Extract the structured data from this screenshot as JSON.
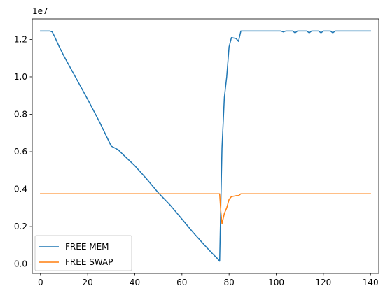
{
  "chart_data": {
    "type": "line",
    "title": "",
    "xlabel": "",
    "ylabel": "",
    "y_offset_label": "1e7",
    "y_scale": 10000000,
    "xlim": [
      -3.5,
      143.5
    ],
    "ylim": [
      -0.05,
      1.31
    ],
    "xticks": [
      0,
      20,
      40,
      60,
      80,
      100,
      120,
      140
    ],
    "xtick_labels": [
      "0",
      "20",
      "40",
      "60",
      "80",
      "100",
      "120",
      "140"
    ],
    "yticks": [
      0.0,
      0.2,
      0.4,
      0.6,
      0.8,
      1.0,
      1.2
    ],
    "ytick_labels": [
      "0.0",
      "0.2",
      "0.4",
      "0.6",
      "0.8",
      "1.0",
      "1.2"
    ],
    "grid": false,
    "legend_position": "lower-left",
    "series": [
      {
        "name": "FREE MEM",
        "color": "#1f77b4",
        "points": [
          [
            0,
            1.245
          ],
          [
            4,
            1.245
          ],
          [
            5,
            1.24
          ],
          [
            6,
            1.215
          ],
          [
            8,
            1.16
          ],
          [
            10,
            1.11
          ],
          [
            15,
            0.995
          ],
          [
            20,
            0.88
          ],
          [
            25,
            0.76
          ],
          [
            30,
            0.63
          ],
          [
            33,
            0.61
          ],
          [
            35,
            0.585
          ],
          [
            40,
            0.525
          ],
          [
            45,
            0.455
          ],
          [
            50,
            0.38
          ],
          [
            55,
            0.315
          ],
          [
            60,
            0.24
          ],
          [
            65,
            0.165
          ],
          [
            70,
            0.095
          ],
          [
            73,
            0.055
          ],
          [
            75,
            0.03
          ],
          [
            76,
            0.015
          ],
          [
            77,
            0.62
          ],
          [
            78,
            0.89
          ],
          [
            79,
            1.0
          ],
          [
            80,
            1.16
          ],
          [
            81,
            1.21
          ],
          [
            83,
            1.205
          ],
          [
            84,
            1.19
          ],
          [
            85,
            1.245
          ],
          [
            102,
            1.245
          ],
          [
            103,
            1.24
          ],
          [
            104,
            1.245
          ],
          [
            107,
            1.245
          ],
          [
            108,
            1.235
          ],
          [
            109,
            1.245
          ],
          [
            113,
            1.245
          ],
          [
            114,
            1.235
          ],
          [
            115,
            1.245
          ],
          [
            118,
            1.245
          ],
          [
            119,
            1.235
          ],
          [
            120,
            1.245
          ],
          [
            123,
            1.245
          ],
          [
            124,
            1.235
          ],
          [
            125,
            1.245
          ],
          [
            140,
            1.245
          ]
        ]
      },
      {
        "name": "FREE SWAP",
        "color": "#ff7f0e",
        "points": [
          [
            0,
            0.375
          ],
          [
            76,
            0.375
          ],
          [
            76.5,
            0.28
          ],
          [
            77,
            0.215
          ],
          [
            78,
            0.27
          ],
          [
            79,
            0.3
          ],
          [
            80,
            0.345
          ],
          [
            81,
            0.36
          ],
          [
            83,
            0.365
          ],
          [
            84,
            0.365
          ],
          [
            85,
            0.375
          ],
          [
            140,
            0.375
          ]
        ]
      }
    ]
  }
}
